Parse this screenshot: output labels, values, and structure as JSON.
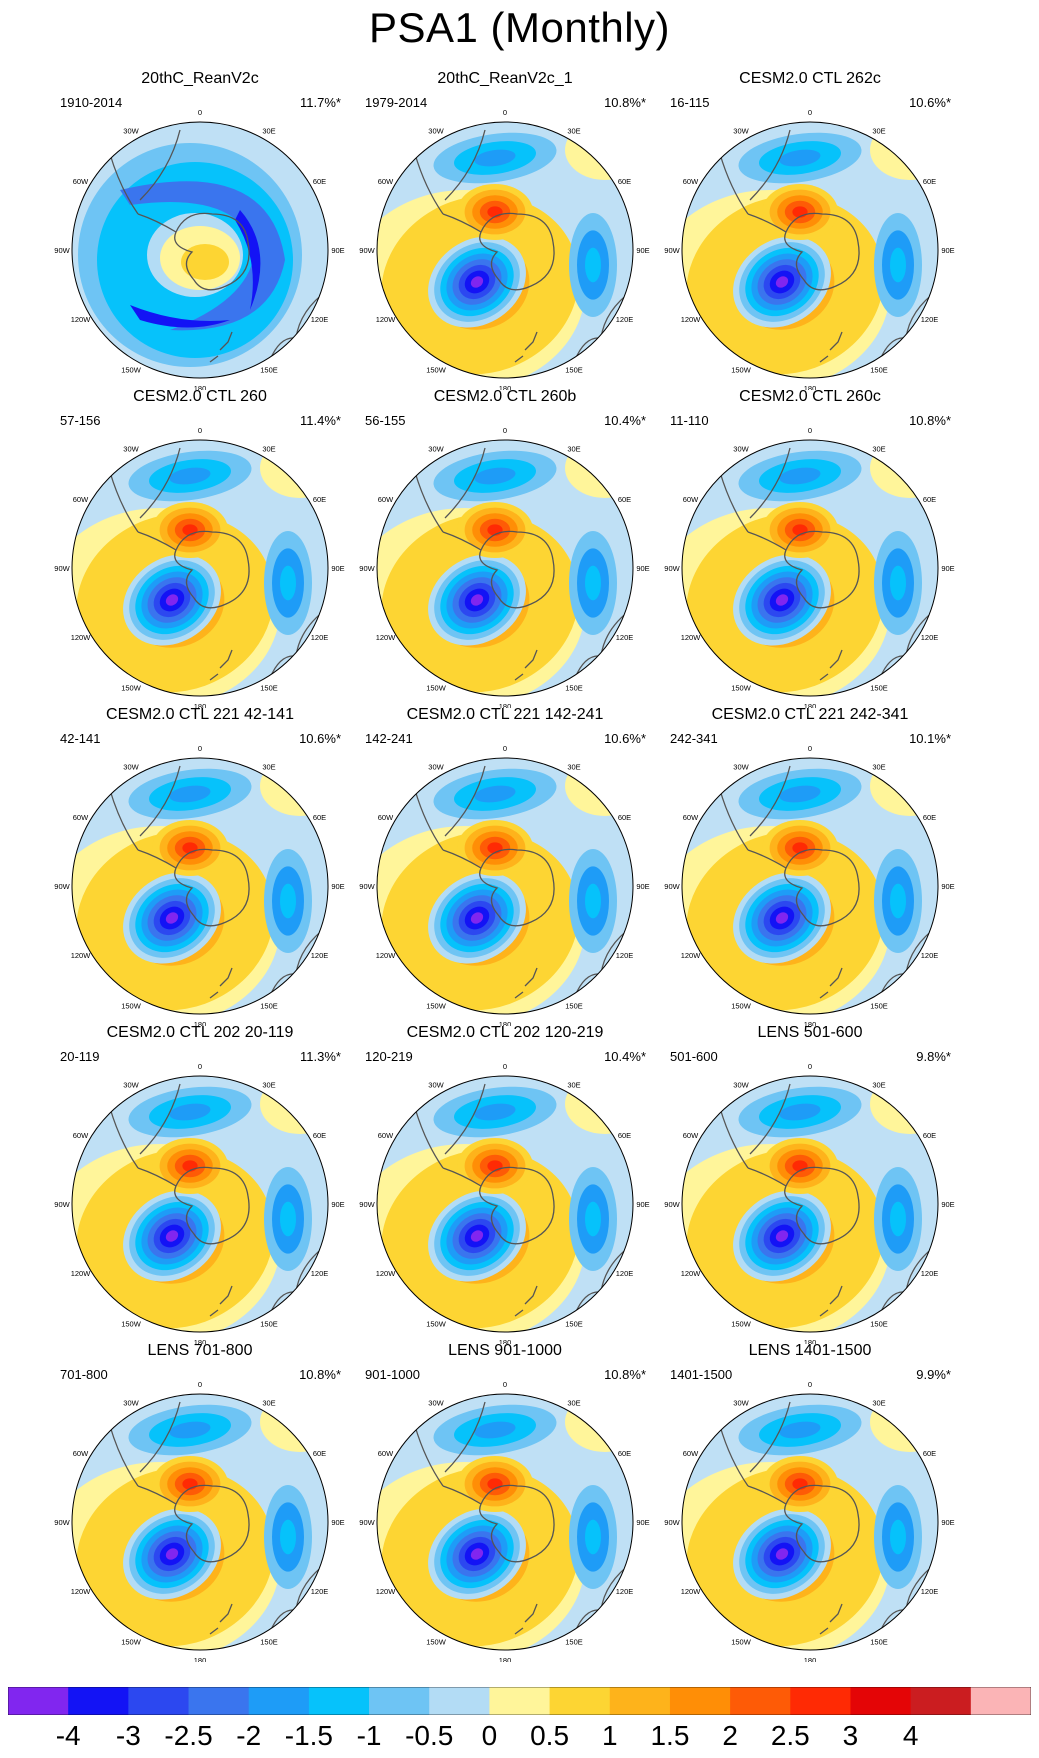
{
  "title": "PSA1 (Monthly)",
  "palette": {
    "ocean": "#bfe0f5",
    "coast": "#6b6b6b",
    "land_line": "#555555"
  },
  "longitude_labels": [
    "0",
    "30E",
    "60E",
    "90E",
    "120E",
    "150E",
    "180",
    "150W",
    "120W",
    "90W",
    "60W",
    "30W"
  ],
  "panels": [
    {
      "title": "20thC_ReanV2c",
      "period": "1910-2014",
      "pct": "11.7%*",
      "pattern": "ring"
    },
    {
      "title": "20thC_ReanV2c_1",
      "period": "1979-2014",
      "pct": "10.8%*",
      "pattern": "wave"
    },
    {
      "title": "CESM2.0 CTL 262c",
      "period": "16-115",
      "pct": "10.6%*",
      "pattern": "wave"
    },
    {
      "title": "CESM2.0 CTL 260",
      "period": "57-156",
      "pct": "11.4%*",
      "pattern": "wave"
    },
    {
      "title": "CESM2.0 CTL 260b",
      "period": "56-155",
      "pct": "10.4%*",
      "pattern": "wave"
    },
    {
      "title": "CESM2.0 CTL 260c",
      "period": "11-110",
      "pct": "10.8%*",
      "pattern": "wave"
    },
    {
      "title": "CESM2.0 CTL 221 42-141",
      "period": "42-141",
      "pct": "10.6%*",
      "pattern": "wave"
    },
    {
      "title": "CESM2.0 CTL 221 142-241",
      "period": "142-241",
      "pct": "10.6%*",
      "pattern": "wave"
    },
    {
      "title": "CESM2.0 CTL 221 242-341",
      "period": "242-341",
      "pct": "10.1%*",
      "pattern": "wave"
    },
    {
      "title": "CESM2.0 CTL 202 20-119",
      "period": "20-119",
      "pct": "11.3%*",
      "pattern": "wave"
    },
    {
      "title": "CESM2.0 CTL 202 120-219",
      "period": "120-219",
      "pct": "10.4%*",
      "pattern": "wave"
    },
    {
      "title": "LENS 501-600",
      "period": "501-600",
      "pct": "9.8%*",
      "pattern": "wave"
    },
    {
      "title": "LENS 701-800",
      "period": "701-800",
      "pct": "10.8%*",
      "pattern": "wave"
    },
    {
      "title": "LENS 901-1000",
      "period": "901-1000",
      "pct": "10.8%*",
      "pattern": "wave"
    },
    {
      "title": "LENS 1401-1500",
      "period": "1401-1500",
      "pct": "9.9%*",
      "pattern": "wave"
    }
  ],
  "colorbar": {
    "colors": [
      "#8126ef",
      "#1313f5",
      "#2c48f0",
      "#3a75ee",
      "#1e9cf7",
      "#06c2fb",
      "#6ec4f4",
      "#b3dcf5",
      "#fff59a",
      "#fdd533",
      "#feb31b",
      "#ff8e06",
      "#fe5b06",
      "#ff2a04",
      "#e40506",
      "#cb1d20",
      "#fbb4b6"
    ],
    "labels": [
      "-4",
      "-3",
      "-2.5",
      "-2",
      "-1.5",
      "-1",
      "-0.5",
      "0",
      "0.5",
      "1",
      "1.5",
      "2",
      "2.5",
      "3",
      "4"
    ]
  }
}
